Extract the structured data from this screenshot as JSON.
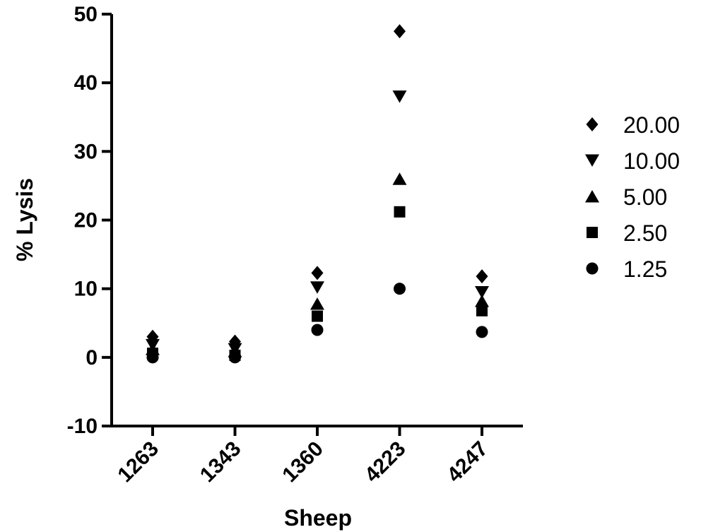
{
  "chart_data": {
    "type": "scatter",
    "categories": [
      "1263",
      "1343",
      "1360",
      "4223",
      "4247"
    ],
    "xlabel": "Sheep",
    "ylabel": "% Lysis",
    "ylim": [
      -10,
      50
    ],
    "yticks": [
      "-10",
      "0",
      "10",
      "20",
      "30",
      "40",
      "50"
    ],
    "grid": false,
    "legend_position": "right",
    "series": [
      {
        "name": "20.00",
        "marker": "diamond",
        "values": [
          3.0,
          2.3,
          12.3,
          47.5,
          11.8
        ]
      },
      {
        "name": "10.00",
        "marker": "triangle-down",
        "values": [
          1.8,
          1.2,
          10.2,
          38.0,
          9.5
        ]
      },
      {
        "name": "5.00",
        "marker": "triangle-up",
        "values": [
          1.2,
          0.9,
          7.8,
          26.0,
          8.2
        ]
      },
      {
        "name": "2.50",
        "marker": "square",
        "values": [
          0.6,
          0.3,
          6.0,
          21.2,
          6.8
        ]
      },
      {
        "name": "1.25",
        "marker": "circle",
        "values": [
          0.0,
          0.0,
          4.0,
          10.0,
          3.7
        ]
      }
    ],
    "color": "#000000"
  }
}
